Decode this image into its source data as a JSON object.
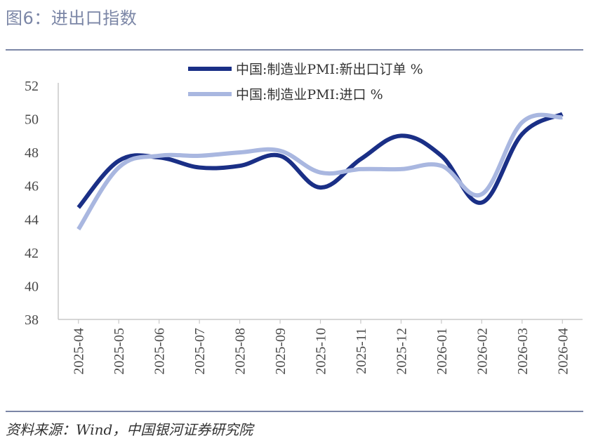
{
  "figure": {
    "title": "图6：进出口指数",
    "source": "资料来源：Wind，中国银河证券研究院"
  },
  "chart_data": {
    "type": "line",
    "title": "",
    "xlabel": "",
    "ylabel": "",
    "categories": [
      "2025-04",
      "2025-05",
      "2025-06",
      "2025-07",
      "2025-08",
      "2025-09",
      "2025-10",
      "2025-11",
      "2025-12",
      "2026-01",
      "2026-02",
      "2026-03",
      "2026-04"
    ],
    "ylim": [
      38,
      52
    ],
    "yticks": [
      38,
      40,
      42,
      44,
      46,
      48,
      50,
      52
    ],
    "grid": false,
    "legend_position": "top",
    "series": [
      {
        "name": "中国:制造业PMI:新出口订单 %",
        "color": "#1a2f86",
        "values": [
          44.7,
          47.5,
          47.7,
          47.1,
          47.2,
          47.8,
          45.9,
          47.6,
          49.0,
          47.8,
          45.0,
          49.1,
          50.3
        ]
      },
      {
        "name": "中国:制造业PMI:进口 %",
        "color": "#a9b7e0",
        "values": [
          43.4,
          47.1,
          47.8,
          47.8,
          48.0,
          48.1,
          46.8,
          47.0,
          47.0,
          47.2,
          45.5,
          49.8,
          50.1
        ]
      }
    ]
  }
}
